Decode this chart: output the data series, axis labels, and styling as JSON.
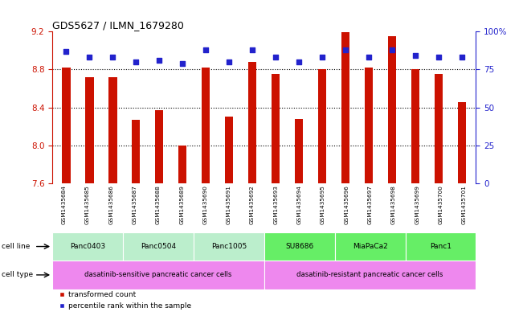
{
  "title": "GDS5627 / ILMN_1679280",
  "gsm_labels": [
    "GSM1435684",
    "GSM1435685",
    "GSM1435686",
    "GSM1435687",
    "GSM1435688",
    "GSM1435689",
    "GSM1435690",
    "GSM1435691",
    "GSM1435692",
    "GSM1435693",
    "GSM1435694",
    "GSM1435695",
    "GSM1435696",
    "GSM1435697",
    "GSM1435698",
    "GSM1435699",
    "GSM1435700",
    "GSM1435701"
  ],
  "bar_values": [
    8.82,
    8.72,
    8.72,
    8.27,
    8.37,
    8.0,
    8.82,
    8.3,
    8.88,
    8.75,
    8.28,
    8.8,
    9.19,
    8.82,
    9.15,
    8.8,
    8.75,
    8.46
  ],
  "percentile_values": [
    87,
    83,
    83,
    80,
    81,
    79,
    88,
    80,
    88,
    83,
    80,
    83,
    88,
    83,
    88,
    84,
    83,
    83
  ],
  "ylim_left": [
    7.6,
    9.2
  ],
  "ylim_right": [
    0,
    100
  ],
  "yticks_left": [
    7.6,
    8.0,
    8.4,
    8.8,
    9.2
  ],
  "yticks_right": [
    0,
    25,
    50,
    75,
    100
  ],
  "ytick_right_labels": [
    "0",
    "25",
    "50",
    "75",
    "100%"
  ],
  "bar_color": "#cc1100",
  "dot_color": "#2222cc",
  "grid_ticks": [
    8.0,
    8.4,
    8.8
  ],
  "cell_lines": [
    {
      "label": "Panc0403",
      "start": 0,
      "end": 3,
      "color": "#bbeecc"
    },
    {
      "label": "Panc0504",
      "start": 3,
      "end": 6,
      "color": "#bbeecc"
    },
    {
      "label": "Panc1005",
      "start": 6,
      "end": 9,
      "color": "#bbeecc"
    },
    {
      "label": "SU8686",
      "start": 9,
      "end": 12,
      "color": "#66ee66"
    },
    {
      "label": "MiaPaCa2",
      "start": 12,
      "end": 15,
      "color": "#66ee66"
    },
    {
      "label": "Panc1",
      "start": 15,
      "end": 18,
      "color": "#66ee66"
    }
  ],
  "cell_types": [
    {
      "label": "dasatinib-sensitive pancreatic cancer cells",
      "start": 0,
      "end": 9,
      "color": "#ee88ee"
    },
    {
      "label": "dasatinib-resistant pancreatic cancer cells",
      "start": 9,
      "end": 18,
      "color": "#ee88ee"
    }
  ],
  "legend_items": [
    {
      "label": "transformed count",
      "color": "#cc1100"
    },
    {
      "label": "percentile rank within the sample",
      "color": "#2222cc"
    }
  ],
  "background_color": "#ffffff",
  "bar_width": 0.35,
  "group_boundaries": [
    3,
    6,
    9,
    12,
    15
  ],
  "n_bars": 18,
  "label_bg_color": "#cccccc"
}
